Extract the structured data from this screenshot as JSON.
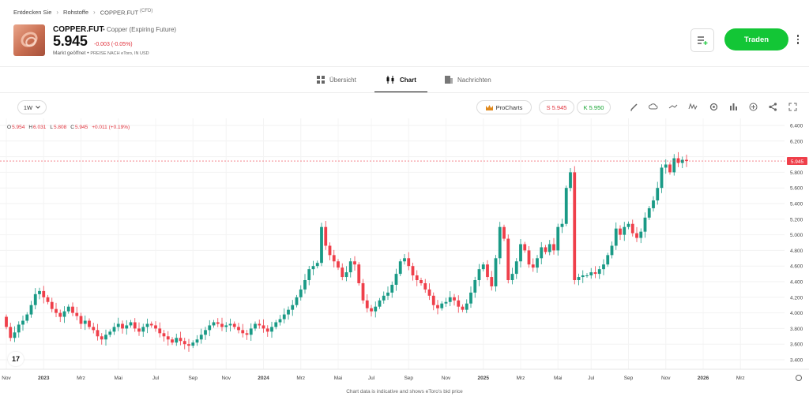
{
  "breadcrumb": {
    "items": [
      "Entdecken Sie",
      "Rohstoffe",
      "COPPER.FUT"
    ],
    "suffix": "(CFD)"
  },
  "instrument": {
    "ticker": "COPPER.FUT",
    "description": "Copper (Expiring Future)",
    "price": "5.945",
    "change": "-0.003 (-0.05%)",
    "market_status": "Markt geöffnet",
    "price_note": "PREISE NACH eToro, IN USD"
  },
  "actions": {
    "trade_label": "Traden"
  },
  "tabs": [
    {
      "label": "Übersicht",
      "icon": "grid-icon",
      "active": false
    },
    {
      "label": "Chart",
      "icon": "candles-icon",
      "active": true
    },
    {
      "label": "Nachrichten",
      "icon": "news-icon",
      "active": false
    }
  ],
  "toolbar": {
    "interval": "1W",
    "procharts_label": "ProCharts",
    "sell_label": "S 5.945",
    "buy_label": "K 5.950",
    "tools": [
      "pencil-icon",
      "cloud-icon",
      "line-icon",
      "indicators-icon",
      "settings-icon",
      "bars-icon",
      "plus-circle-icon",
      "share-icon",
      "fullscreen-icon"
    ]
  },
  "ohlc": {
    "o_label": "O",
    "o": "5.954",
    "h_label": "H",
    "h": "6.031",
    "l_label": "L",
    "l": "5.808",
    "c_label": "C",
    "c": "5.945",
    "chg": "+0.011 (+0.19%)"
  },
  "colors": {
    "up": "#1a9a86",
    "down": "#ef3f4a",
    "trade": "#13c636"
  },
  "chart_data": {
    "type": "candlestick",
    "y_ticks": [
      "6.400",
      "6.200",
      "6.000",
      "5.800",
      "5.600",
      "5.400",
      "5.200",
      "5.000",
      "4.800",
      "4.600",
      "4.400",
      "4.200",
      "4.000",
      "3.800",
      "3.600",
      "3.400"
    ],
    "ylim": [
      3.4,
      6.4
    ],
    "x_ticks": [
      {
        "label": "Nov",
        "w": 0,
        "bold": false
      },
      {
        "label": "2023",
        "w": 9,
        "bold": true
      },
      {
        "label": "Mrz",
        "w": 18,
        "bold": false
      },
      {
        "label": "Mai",
        "w": 27,
        "bold": false
      },
      {
        "label": "Jul",
        "w": 36,
        "bold": false
      },
      {
        "label": "Sep",
        "w": 45,
        "bold": false
      },
      {
        "label": "Nov",
        "w": 53,
        "bold": false
      },
      {
        "label": "2024",
        "w": 62,
        "bold": true
      },
      {
        "label": "Mrz",
        "w": 71,
        "bold": false
      },
      {
        "label": "Mai",
        "w": 80,
        "bold": false
      },
      {
        "label": "Jul",
        "w": 88,
        "bold": false
      },
      {
        "label": "Sep",
        "w": 97,
        "bold": false
      },
      {
        "label": "Nov",
        "w": 106,
        "bold": false
      },
      {
        "label": "2025",
        "w": 115,
        "bold": true
      },
      {
        "label": "Mrz",
        "w": 124,
        "bold": false
      },
      {
        "label": "Mai",
        "w": 133,
        "bold": false
      },
      {
        "label": "Jul",
        "w": 141,
        "bold": false
      },
      {
        "label": "Sep",
        "w": 150,
        "bold": false
      },
      {
        "label": "Nov",
        "w": 159,
        "bold": false
      },
      {
        "label": "2026",
        "w": 168,
        "bold": true
      },
      {
        "label": "Mrz",
        "w": 177,
        "bold": false
      }
    ],
    "last_price": 5.945,
    "last_price_label": "5.945",
    "closes": [
      3.82,
      3.68,
      3.75,
      3.85,
      3.9,
      3.98,
      4.1,
      4.24,
      4.28,
      4.2,
      4.14,
      4.05,
      4.0,
      3.95,
      4.02,
      4.08,
      4.0,
      3.96,
      3.86,
      3.9,
      3.82,
      3.78,
      3.7,
      3.66,
      3.72,
      3.76,
      3.82,
      3.86,
      3.8,
      3.84,
      3.88,
      3.8,
      3.76,
      3.82,
      3.86,
      3.84,
      3.8,
      3.74,
      3.7,
      3.66,
      3.62,
      3.68,
      3.64,
      3.6,
      3.58,
      3.62,
      3.66,
      3.72,
      3.78,
      3.84,
      3.88,
      3.86,
      3.82,
      3.84,
      3.86,
      3.82,
      3.78,
      3.74,
      3.72,
      3.8,
      3.86,
      3.84,
      3.8,
      3.76,
      3.82,
      3.88,
      3.92,
      3.98,
      4.04,
      4.1,
      4.2,
      4.3,
      4.42,
      4.56,
      4.6,
      4.64,
      5.1,
      4.86,
      4.74,
      4.66,
      4.58,
      4.46,
      4.52,
      4.66,
      4.62,
      4.38,
      4.16,
      4.06,
      4.02,
      4.08,
      4.16,
      4.22,
      4.26,
      4.36,
      4.5,
      4.66,
      4.7,
      4.6,
      4.48,
      4.42,
      4.38,
      4.3,
      4.22,
      4.1,
      4.06,
      4.12,
      4.14,
      4.2,
      4.16,
      4.08,
      4.04,
      4.12,
      4.26,
      4.42,
      4.56,
      4.62,
      4.46,
      4.34,
      4.7,
      5.1,
      4.95,
      4.42,
      4.5,
      4.66,
      4.88,
      4.8,
      4.62,
      4.58,
      4.7,
      4.84,
      4.78,
      4.88,
      4.8,
      5.1,
      5.14,
      5.6,
      5.8,
      4.42,
      4.46,
      4.48,
      4.48,
      4.52,
      4.5,
      4.56,
      4.62,
      4.74,
      4.86,
      5.08,
      5.0,
      5.1,
      5.14,
      5.02,
      4.96,
      5.04,
      5.22,
      5.34,
      5.44,
      5.6,
      5.86,
      5.9,
      5.8,
      5.98,
      5.92,
      5.96,
      5.945
    ]
  }
}
